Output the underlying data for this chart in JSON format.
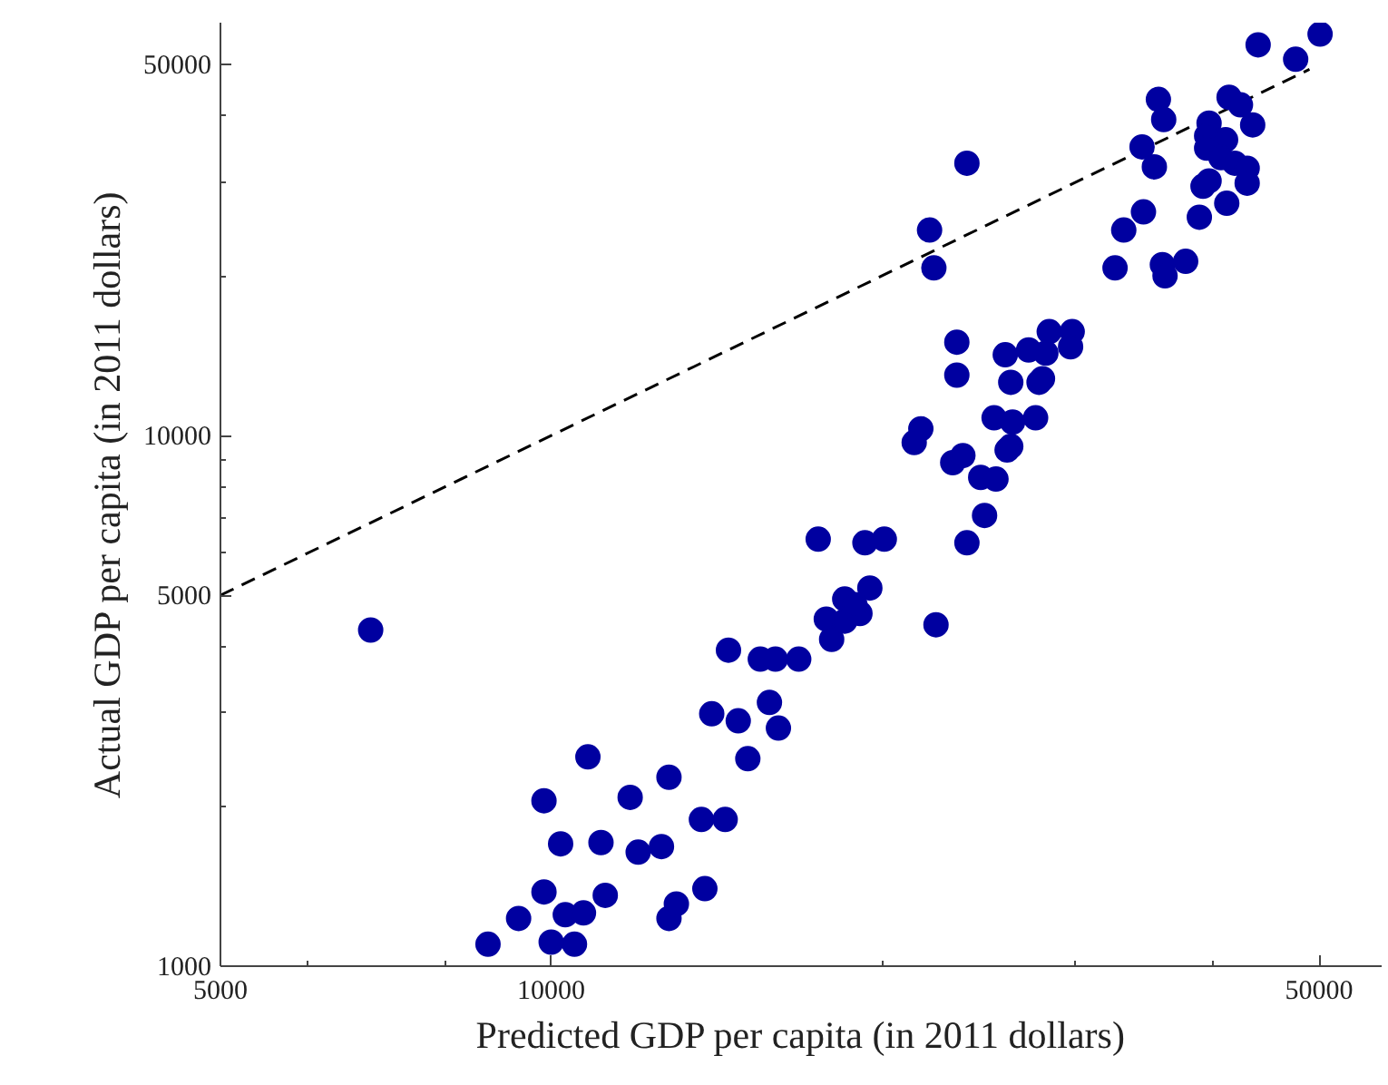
{
  "chart_data": {
    "type": "scatter",
    "xlabel": "Predicted GDP per capita (in 2011 dollars)",
    "ylabel": "Actual GDP per capita (in 2011 dollars)",
    "log": "xy",
    "grid": false,
    "marker": "circle",
    "xlim": [
      5000,
      57000
    ],
    "ylim": [
      1000,
      60000
    ],
    "xticks": [
      5000,
      {
        "value": 6000,
        "label": null
      },
      {
        "value": 8000,
        "label": null
      },
      10000,
      {
        "value": 20000,
        "label": null
      },
      {
        "value": 30000,
        "label": null
      },
      {
        "value": 40000,
        "label": null
      },
      50000
    ],
    "yticks": [
      1000,
      {
        "value": 2000,
        "label": null
      },
      {
        "value": 3000,
        "label": null
      },
      {
        "value": 4000,
        "label": null
      },
      5000,
      {
        "value": 6000,
        "label": null
      },
      {
        "value": 7000,
        "label": null
      },
      {
        "value": 8000,
        "label": null
      },
      {
        "value": 9000,
        "label": null
      },
      10000,
      {
        "value": 20000,
        "label": null
      },
      {
        "value": 30000,
        "label": null
      },
      {
        "value": 40000,
        "label": null
      },
      50000
    ],
    "series": [
      {
        "type": "line",
        "marker": "none",
        "line_style": "dashed",
        "color": "#000000",
        "x": [
          5000,
          49000
        ],
        "values": [
          5000,
          49000
        ]
      },
      {
        "color": "#0000a0",
        "x": [
          50100,
          44000,
          47600,
          35700,
          36100,
          41400,
          42400,
          43500,
          39700,
          34500,
          35400,
          39500,
          41100,
          39500,
          40700,
          41900,
          43000,
          43000,
          39200,
          39700,
          41200,
          38900,
          34600,
          33200,
          32600,
          36000,
          36200,
          37800,
          23900,
          22100,
          22300,
          23400,
          23400,
          25900,
          27200,
          28200,
          28400,
          29800,
          29700,
          26200,
          27800,
          28000,
          25300,
          26300,
          27600,
          21700,
          21400,
          23200,
          23700,
          26200,
          26000,
          24600,
          25400,
          24800,
          17500,
          19300,
          20100,
          23900,
          18500,
          19500,
          17800,
          18000,
          18500,
          19100,
          18900,
          22400,
          16800,
          6850,
          14500,
          15500,
          16000,
          15800,
          14000,
          14800,
          16100,
          15100,
          10800,
          12800,
          9850,
          11800,
          13700,
          14400,
          10200,
          11100,
          12000,
          12600,
          9850,
          11200,
          13800,
          9340,
          10300,
          10700,
          12800,
          13000,
          8760,
          10000,
          10500
        ],
        "values": [
          57100,
          54500,
          51200,
          43000,
          39400,
          43400,
          42000,
          38500,
          38800,
          35000,
          32100,
          36700,
          36100,
          34800,
          33400,
          32600,
          31900,
          29900,
          29500,
          30200,
          27400,
          25800,
          26400,
          24400,
          20700,
          21000,
          20000,
          21300,
          32600,
          24400,
          20700,
          15000,
          13000,
          14200,
          14500,
          14300,
          15700,
          15700,
          14700,
          12600,
          12600,
          12800,
          10800,
          10600,
          10800,
          10300,
          9700,
          8890,
          9170,
          9540,
          9390,
          8340,
          8280,
          7070,
          6380,
          6280,
          6380,
          6280,
          4920,
          5160,
          4510,
          4130,
          4470,
          4620,
          4800,
          4400,
          3790,
          4300,
          3940,
          3790,
          3790,
          3140,
          2990,
          2900,
          2810,
          2460,
          2480,
          2270,
          2050,
          2080,
          1890,
          1890,
          1700,
          1710,
          1640,
          1680,
          1380,
          1360,
          1400,
          1230,
          1250,
          1260,
          1230,
          1310,
          1100,
          1110,
          1100
        ]
      }
    ]
  }
}
